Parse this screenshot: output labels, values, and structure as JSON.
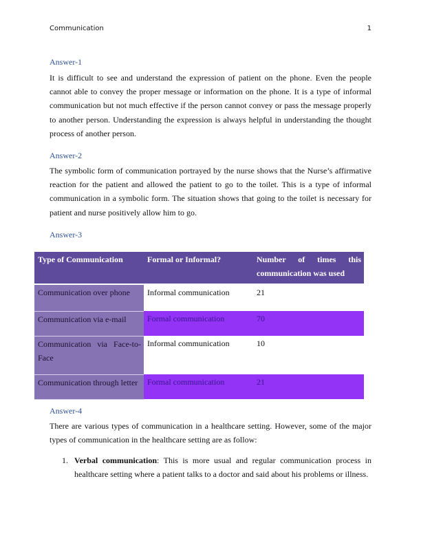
{
  "header": {
    "title": "Communication",
    "page_number": "1"
  },
  "answers": [
    {
      "heading": "Answer-1",
      "text": "It is difficult to see and understand the expression of patient on the phone. Even the people cannot able to convey the proper message or information on the phone. It is a type of informal communication but not much effective if the person cannot convey or pass the message properly to another person. Understanding the expression is always helpful in understanding the thought process of another person."
    },
    {
      "heading": "Answer-2",
      "text": "The symbolic form of communication portrayed by the nurse shows that the Nurse’s affirmative reaction for the patient and allowed the patient to go to the toilet. This is a type of informal communication in a symbolic form. The situation shows that going to the toilet is necessary for patient and nurse positively allow him to go."
    },
    {
      "heading": "Answer-3"
    },
    {
      "heading": "Answer-4",
      "text": "There are various types of communication in a healthcare setting. However, some of the major types of communication in the healthcare setting are as follow:"
    }
  ],
  "table": {
    "headers": [
      "Type of Communication",
      "Formal or Informal?",
      "Number of times this communication was used"
    ],
    "rows": [
      [
        "Communication over phone",
        "Informal communication",
        "21"
      ],
      [
        "Communication via e-mail",
        "Formal communication",
        "70"
      ],
      [
        "Communication via Face-to-Face",
        "Informal communication",
        "10"
      ],
      [
        "Communication through letter",
        "Formal communication",
        "21"
      ]
    ]
  },
  "list": [
    {
      "number": "1.",
      "term": "Verbal communication",
      "text": ": This is more usual and regular communication process in healthcare setting where a patient talks to a doctor and said about his problems or illness."
    }
  ],
  "colors": {
    "heading": "#2f5496",
    "table_header": "#5f4b9b",
    "first_column": "#8673b4",
    "formal_row": "#9233f5"
  }
}
